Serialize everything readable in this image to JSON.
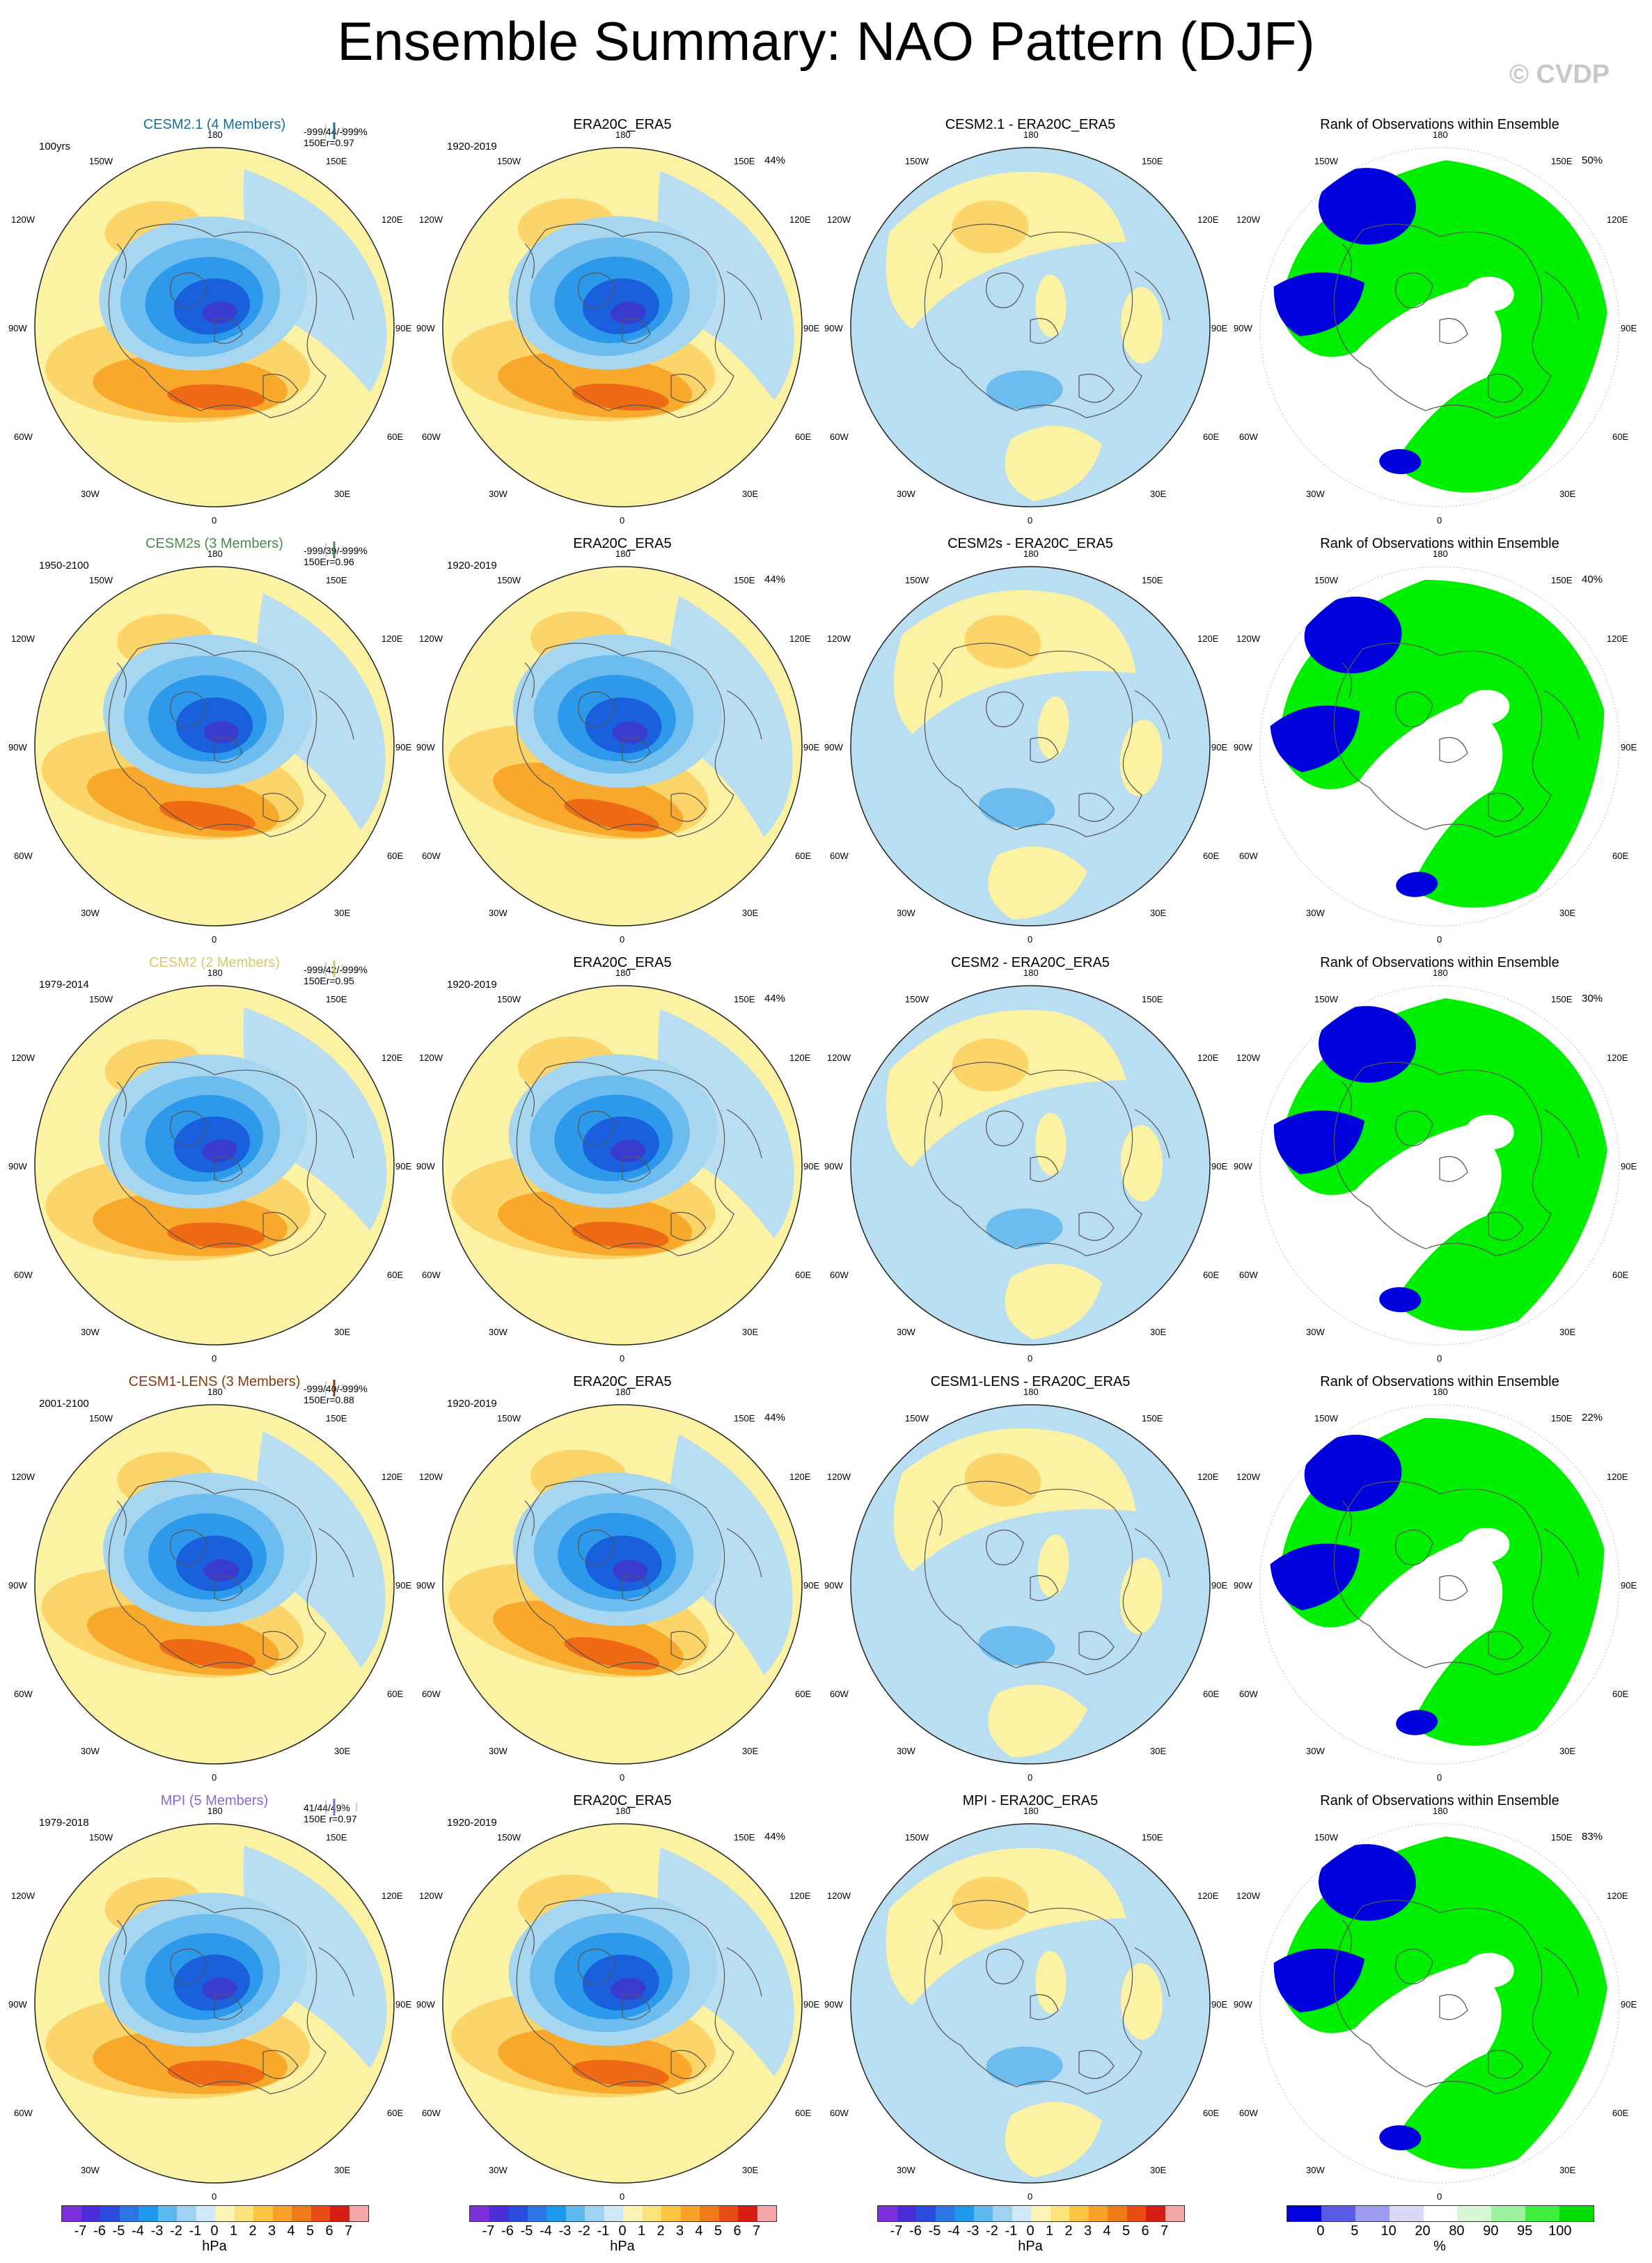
{
  "title": "Ensemble Summary: NAO Pattern (DJF)",
  "copyright": "© CVDP",
  "colors": {
    "ocean": "#b9def2",
    "pos1": "#fbf2a3",
    "pos2": "#fbd46a",
    "pos3": "#f8a82a",
    "pos4": "#ee6a14",
    "neg1": "#a7d6f1",
    "neg2": "#6cbcef",
    "neg3": "#2c99ea",
    "neg4": "#1a5fdb",
    "neg5": "#3a3bcf",
    "rank_blue": "#0000dd",
    "rank_green": "#00ee00",
    "rank_white": "#ffffff",
    "rank_pale": "#dff8df"
  },
  "lon_labels": {
    "top": "180",
    "bottom": "0",
    "tl": "150W",
    "tr": "150E",
    "ul": "120W",
    "ur": "120E",
    "ml": "90W",
    "mr": "90E",
    "ll": "60W",
    "lr": "60E",
    "bl": "30W",
    "br": "30E"
  },
  "rows": [
    {
      "model_title": "CESM2.1 (4 Members)",
      "model_color": "#1a6e94",
      "years": "100yrs",
      "stats_line1": "-999/44/-999%",
      "stats_line2": "150Er=0.97",
      "obs_title": "ERA20C_ERA5",
      "obs_years": "1920-2019",
      "obs_pct": "44%",
      "diff_title": "CESM2.1 - ERA20C_ERA5",
      "rank_title": "Rank of Observations within Ensemble",
      "rank_pct": "50%"
    },
    {
      "model_title": "CESM2s (3 Members)",
      "model_color": "#4a8a4e",
      "years": "1950-2100",
      "stats_line1": "-999/39/-999%",
      "stats_line2": "150Er=0.96",
      "obs_title": "ERA20C_ERA5",
      "obs_years": "1920-2019",
      "obs_pct": "44%",
      "diff_title": "CESM2s - ERA20C_ERA5",
      "rank_title": "Rank of Observations within Ensemble",
      "rank_pct": "40%"
    },
    {
      "model_title": "CESM2 (2 Members)",
      "model_color": "#d8c86a",
      "years": "1979-2014",
      "stats_line1": "-999/42/-999%",
      "stats_line2": "150Er=0.95",
      "obs_title": "ERA20C_ERA5",
      "obs_years": "1920-2019",
      "obs_pct": "44%",
      "diff_title": "CESM2 - ERA20C_ERA5",
      "rank_title": "Rank of Observations within Ensemble",
      "rank_pct": "30%"
    },
    {
      "model_title": "CESM1-LENS (3 Members)",
      "model_color": "#8a3a10",
      "years": "2001-2100",
      "stats_line1": "-999/40/-999%",
      "stats_line2": "150Er=0.88",
      "obs_title": "ERA20C_ERA5",
      "obs_years": "1920-2019",
      "obs_pct": "44%",
      "diff_title": "CESM1-LENS - ERA20C_ERA5",
      "rank_title": "Rank of Observations within Ensemble",
      "rank_pct": "22%"
    },
    {
      "model_title": "MPI (5 Members)",
      "model_color": "#8a66d8",
      "years": "1979-2018",
      "stats_line1": "41/44/49%",
      "stats_line2": "150E    r=0.97",
      "obs_title": "ERA20C_ERA5",
      "obs_years": "1920-2019",
      "obs_pct": "44%",
      "diff_title": "MPI - ERA20C_ERA5",
      "rank_title": "Rank of Observations within Ensemble",
      "rank_pct": "83%"
    }
  ],
  "colorbar": {
    "ticks": [
      "-7",
      "-6",
      "-5",
      "-4",
      "-3",
      "-2",
      "-1",
      "0",
      "1",
      "2",
      "3",
      "4",
      "5",
      "6",
      "7"
    ],
    "unit": "hPa",
    "colors": [
      "#7a2fd8",
      "#4b2cd8",
      "#2b4bdd",
      "#2b76e4",
      "#1c99ea",
      "#5cb9ee",
      "#9fd2f0",
      "#cfe9f6",
      "#fcf4b4",
      "#fbe37a",
      "#fbc443",
      "#f8a22a",
      "#f17a1a",
      "#e84e14",
      "#d61e14",
      "#f5a7a7"
    ]
  },
  "rank_colorbar": {
    "ticks": [
      "0",
      "5",
      "10",
      "20",
      "80",
      "90",
      "95",
      "100"
    ],
    "unit": "%",
    "colors": [
      "#0000dd",
      "#5a5ae6",
      "#9c9cf0",
      "#d8d8f6",
      "#ffffff",
      "#d6f6d6",
      "#9ef29e",
      "#3fee3f",
      "#00dd00"
    ]
  }
}
